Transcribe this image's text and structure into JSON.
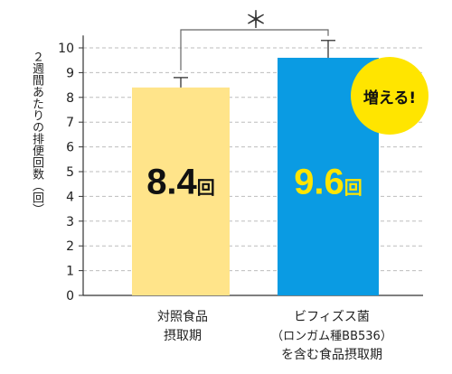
{
  "chart_data": {
    "type": "bar",
    "categories": [
      {
        "lines": [
          "対照食品",
          "摂取期"
        ]
      },
      {
        "lines": [
          "ビフィズス菌",
          "（ロンガム種BB536）",
          "を含む食品摂取期"
        ]
      }
    ],
    "values": [
      8.4,
      9.6
    ],
    "errors": [
      0.4,
      0.7
    ],
    "value_labels": [
      {
        "num": "8.4",
        "unit": "回"
      },
      {
        "num": "9.6",
        "unit": "回"
      }
    ],
    "bar_colors": [
      "#ffe48a",
      "#0a9be3"
    ],
    "value_label_colors": [
      "#111111",
      "#ffe500"
    ],
    "ylabel": "２週間あたりの排便回数（回）",
    "ylim": [
      0,
      10.5
    ],
    "yticks": [
      0,
      1,
      2,
      3,
      4,
      5,
      6,
      7,
      8,
      9,
      10
    ],
    "grid": true,
    "significance": "＊",
    "badge": "増える!"
  }
}
